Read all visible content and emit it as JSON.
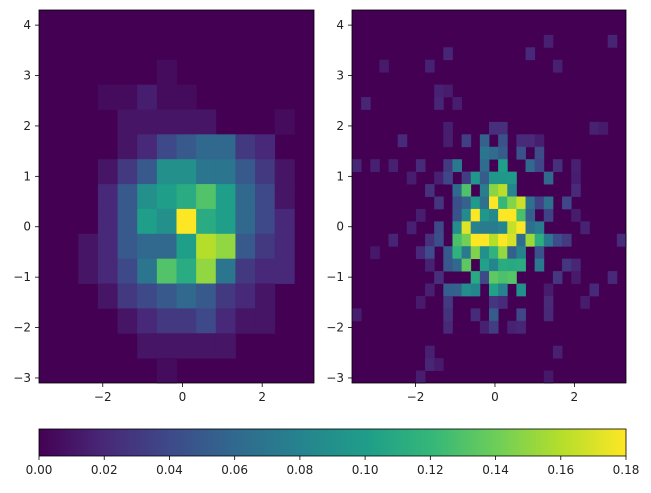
{
  "chart_data": [
    {
      "type": "heatmap",
      "title": "",
      "xlabel": "",
      "ylabel": "",
      "xlim": [
        -3.6,
        3.3
      ],
      "ylim": [
        -3.1,
        4.3
      ],
      "x_ticks": [
        -2,
        0,
        2
      ],
      "y_ticks": [
        -3,
        -2,
        -1,
        0,
        1,
        2,
        3,
        4
      ],
      "grid": false,
      "bins": [
        14,
        15
      ],
      "colormap": "viridis",
      "density_grid_top_to_bottom": [
        [
          0.0,
          0.0,
          0.0,
          0.0,
          0.0,
          0.0,
          0.0,
          0.0,
          0.0,
          0.0,
          0.0,
          0.0,
          0.0,
          0.0
        ],
        [
          0.0,
          0.0,
          0.0,
          0.0,
          0.0,
          0.0,
          0.0,
          0.0,
          0.0,
          0.0,
          0.0,
          0.0,
          0.0,
          0.0
        ],
        [
          0.0,
          0.0,
          0.0,
          0.0,
          0.0,
          0.0,
          0.005,
          0.0,
          0.0,
          0.0,
          0.0,
          0.0,
          0.0,
          0.0
        ],
        [
          0.0,
          0.0,
          0.0,
          0.005,
          0.005,
          0.015,
          0.005,
          0.005,
          0.0,
          0.0,
          0.0,
          0.0,
          0.0,
          0.0
        ],
        [
          0.0,
          0.0,
          0.0,
          0.0,
          0.01,
          0.01,
          0.01,
          0.01,
          0.01,
          0.0,
          0.0,
          0.0,
          0.005,
          0.0
        ],
        [
          0.0,
          0.0,
          0.0,
          0.0,
          0.01,
          0.02,
          0.04,
          0.05,
          0.06,
          0.06,
          0.03,
          0.02,
          0.0,
          0.0
        ],
        [
          0.0,
          0.0,
          0.0,
          0.01,
          0.03,
          0.05,
          0.09,
          0.09,
          0.07,
          0.07,
          0.05,
          0.03,
          0.01,
          0.0
        ],
        [
          0.0,
          0.0,
          0.0,
          0.02,
          0.05,
          0.09,
          0.1,
          0.11,
          0.13,
          0.1,
          0.06,
          0.04,
          0.01,
          0.0
        ],
        [
          0.0,
          0.0,
          0.0,
          0.02,
          0.05,
          0.1,
          0.09,
          0.18,
          0.11,
          0.1,
          0.06,
          0.04,
          0.02,
          0.0
        ],
        [
          0.0,
          0.0,
          0.01,
          0.02,
          0.05,
          0.06,
          0.06,
          0.1,
          0.16,
          0.15,
          0.05,
          0.03,
          0.02,
          0.0
        ],
        [
          0.0,
          0.0,
          0.01,
          0.02,
          0.04,
          0.07,
          0.13,
          0.11,
          0.15,
          0.07,
          0.03,
          0.02,
          0.02,
          0.0
        ],
        [
          0.0,
          0.0,
          0.0,
          0.01,
          0.03,
          0.04,
          0.05,
          0.06,
          0.05,
          0.03,
          0.02,
          0.01,
          0.0,
          0.0
        ],
        [
          0.0,
          0.0,
          0.0,
          0.0,
          0.01,
          0.02,
          0.03,
          0.03,
          0.04,
          0.02,
          0.01,
          0.01,
          0.0,
          0.0
        ],
        [
          0.0,
          0.0,
          0.0,
          0.0,
          0.0,
          0.01,
          0.01,
          0.01,
          0.01,
          0.01,
          0.0,
          0.0,
          0.0,
          0.0
        ],
        [
          0.0,
          0.0,
          0.0,
          0.0,
          0.0,
          0.0,
          0.005,
          0.0,
          0.0,
          0.0,
          0.0,
          0.0,
          0.0,
          0.0
        ]
      ]
    },
    {
      "type": "heatmap",
      "title": "",
      "xlabel": "",
      "ylabel": "",
      "xlim": [
        -3.6,
        3.3
      ],
      "ylim": [
        -3.1,
        4.3
      ],
      "x_ticks": [
        -2,
        0,
        2
      ],
      "y_ticks": [
        -3,
        -2,
        -1,
        0,
        1,
        2,
        3,
        4
      ],
      "grid": false,
      "bins": [
        30,
        30
      ],
      "colormap": "viridis",
      "density_grid_top_to_bottom": [
        [
          0.0,
          0.0,
          0.0,
          0.0,
          0.0,
          0.0,
          0.0,
          0.0,
          0.0,
          0.0,
          0.0,
          0.0,
          0.0,
          0.0,
          0.0,
          0.0,
          0.0,
          0.0,
          0.0,
          0.0,
          0.0,
          0.0,
          0.0,
          0.0,
          0.0,
          0.0,
          0.0,
          0.0,
          0.0,
          0.0
        ],
        [
          0.0,
          0.0,
          0.0,
          0.0,
          0.0,
          0.0,
          0.0,
          0.0,
          0.0,
          0.0,
          0.0,
          0.0,
          0.0,
          0.0,
          0.0,
          0.0,
          0.0,
          0.0,
          0.0,
          0.0,
          0.0,
          0.0,
          0.0,
          0.0,
          0.0,
          0.0,
          0.0,
          0.0,
          0.0,
          0.0
        ],
        [
          0.0,
          0.0,
          0.0,
          0.0,
          0.0,
          0.0,
          0.0,
          0.0,
          0.0,
          0.0,
          0.0,
          0.0,
          0.0,
          0.0,
          0.0,
          0.0,
          0.0,
          0.0,
          0.0,
          0.0,
          0.0,
          0.0,
          0.0,
          0.0,
          0.0,
          0.0,
          0.0,
          0.0,
          0.0,
          0.0
        ],
        [
          0.0,
          0.0,
          0.0,
          0.0,
          0.0,
          0.0,
          0.0,
          0.0,
          0.0,
          0.0,
          0.0,
          0.0,
          0.0,
          0.0,
          0.0,
          0.0,
          0.0,
          0.0,
          0.0,
          0.0,
          0.0,
          0.0,
          0.0,
          0.0,
          0.0,
          0.0,
          0.0,
          0.0,
          0.0,
          0.0
        ],
        [
          0.0,
          0.0,
          0.0,
          0.0,
          0.0,
          0.0,
          0.0,
          0.0,
          0.0,
          0.0,
          0.0,
          0.0,
          0.0,
          0.0,
          0.0,
          0.0,
          0.0,
          0.0,
          0.0,
          0.0,
          0.0,
          0.0,
          0.0,
          0.0,
          0.0,
          0.0,
          0.0,
          0.0,
          0.0,
          0.0
        ],
        [
          0.0,
          0.0,
          0.0,
          0.0,
          0.0,
          0.0,
          0.0,
          0.0,
          0.0,
          0.0,
          0.0,
          0.0,
          0.0,
          0.0,
          0.0,
          0.0,
          0.0,
          0.0,
          0.0,
          0.0,
          0.0,
          0.0,
          0.0,
          0.0,
          0.0,
          0.0,
          0.0,
          0.0,
          0.0,
          0.0
        ],
        [
          0.0,
          0.0,
          0.0,
          0.0,
          0.0,
          0.0,
          0.0,
          0.0,
          0.0,
          0.0,
          0.0,
          0.0,
          0.0,
          0.0,
          0.0,
          0.0,
          0.0,
          0.0,
          0.0,
          0.0,
          0.0,
          0.0,
          0.0,
          0.0,
          0.0,
          0.0,
          0.0,
          0.0,
          0.0,
          0.0
        ],
        [
          0.0,
          0.0,
          0.0,
          0.0,
          0.0,
          0.0,
          0.0,
          0.0,
          0.0,
          0.0,
          0.0,
          0.0,
          0.0,
          0.0,
          0.0,
          0.0,
          0.0,
          0.0,
          0.0,
          0.0,
          0.0,
          0.0,
          0.0,
          0.0,
          0.0,
          0.0,
          0.0,
          0.0,
          0.0,
          0.0
        ],
        [
          0.0,
          0.0,
          0.0,
          0.0,
          0.0,
          0.0,
          0.0,
          0.0,
          0.0,
          0.0,
          0.0,
          0.0,
          0.0,
          0.0,
          0.0,
          0.0,
          0.0,
          0.0,
          0.0,
          0.0,
          0.0,
          0.0,
          0.0,
          0.0,
          0.0,
          0.0,
          0.0,
          0.0,
          0.0,
          0.0
        ],
        [
          0.0,
          0.0,
          0.0,
          0.0,
          0.0,
          0.0,
          0.0,
          0.0,
          0.0,
          0.0,
          0.0,
          0.0,
          0.0,
          0.0,
          0.0,
          0.0,
          0.0,
          0.0,
          0.0,
          0.0,
          0.0,
          0.0,
          0.0,
          0.0,
          0.0,
          0.0,
          0.0,
          0.0,
          0.0,
          0.0
        ],
        [
          0.0,
          0.0,
          0.0,
          0.0,
          0.0,
          0.0,
          0.0,
          0.0,
          0.0,
          0.0,
          0.0,
          0.0,
          0.0,
          0.0,
          0.0,
          0.0,
          0.0,
          0.0,
          0.0,
          0.0,
          0.0,
          0.0,
          0.0,
          0.0,
          0.0,
          0.0,
          0.0,
          0.0,
          0.0,
          0.0
        ],
        [
          0.0,
          0.0,
          0.0,
          0.0,
          0.0,
          0.0,
          0.0,
          0.0,
          0.0,
          0.0,
          0.0,
          0.0,
          0.0,
          0.0,
          0.0,
          0.0,
          0.0,
          0.0,
          0.0,
          0.0,
          0.0,
          0.0,
          0.0,
          0.0,
          0.0,
          0.0,
          0.0,
          0.0,
          0.0,
          0.0
        ],
        [
          0.0,
          0.0,
          0.0,
          0.0,
          0.0,
          0.0,
          0.0,
          0.0,
          0.0,
          0.0,
          0.0,
          0.0,
          0.0,
          0.0,
          0.0,
          0.0,
          0.0,
          0.0,
          0.0,
          0.0,
          0.0,
          0.0,
          0.0,
          0.0,
          0.0,
          0.0,
          0.0,
          0.0,
          0.0,
          0.0
        ],
        [
          0.0,
          0.0,
          0.0,
          0.0,
          0.0,
          0.0,
          0.0,
          0.0,
          0.0,
          0.0,
          0.0,
          0.0,
          0.0,
          0.0,
          0.0,
          0.0,
          0.0,
          0.0,
          0.0,
          0.0,
          0.0,
          0.0,
          0.0,
          0.0,
          0.0,
          0.0,
          0.0,
          0.0,
          0.0,
          0.0
        ],
        [
          0.0,
          0.0,
          0.0,
          0.0,
          0.0,
          0.0,
          0.0,
          0.0,
          0.0,
          0.0,
          0.0,
          0.0,
          0.0,
          0.0,
          0.0,
          0.0,
          0.0,
          0.0,
          0.0,
          0.0,
          0.0,
          0.0,
          0.0,
          0.0,
          0.0,
          0.0,
          0.0,
          0.0,
          0.0,
          0.0
        ],
        [
          0.0,
          0.0,
          0.0,
          0.0,
          0.0,
          0.0,
          0.0,
          0.0,
          0.0,
          0.0,
          0.0,
          0.0,
          0.0,
          0.0,
          0.0,
          0.0,
          0.0,
          0.0,
          0.0,
          0.0,
          0.0,
          0.0,
          0.0,
          0.0,
          0.0,
          0.0,
          0.0,
          0.0,
          0.0,
          0.0
        ],
        [
          0.0,
          0.0,
          0.0,
          0.0,
          0.0,
          0.0,
          0.0,
          0.0,
          0.0,
          0.0,
          0.0,
          0.0,
          0.0,
          0.0,
          0.0,
          0.0,
          0.0,
          0.0,
          0.0,
          0.0,
          0.0,
          0.0,
          0.0,
          0.0,
          0.0,
          0.0,
          0.0,
          0.0,
          0.0,
          0.0
        ],
        [
          0.0,
          0.0,
          0.0,
          0.0,
          0.0,
          0.0,
          0.0,
          0.0,
          0.0,
          0.0,
          0.0,
          0.0,
          0.0,
          0.0,
          0.0,
          0.0,
          0.0,
          0.0,
          0.0,
          0.0,
          0.0,
          0.0,
          0.0,
          0.0,
          0.0,
          0.0,
          0.0,
          0.0,
          0.0,
          0.0
        ],
        [
          0.0,
          0.0,
          0.0,
          0.0,
          0.0,
          0.0,
          0.0,
          0.0,
          0.0,
          0.0,
          0.0,
          0.0,
          0.0,
          0.0,
          0.0,
          0.0,
          0.0,
          0.0,
          0.0,
          0.0,
          0.0,
          0.0,
          0.0,
          0.0,
          0.0,
          0.0,
          0.0,
          0.0,
          0.0,
          0.0
        ],
        [
          0.0,
          0.0,
          0.0,
          0.0,
          0.0,
          0.0,
          0.0,
          0.0,
          0.0,
          0.0,
          0.0,
          0.0,
          0.0,
          0.0,
          0.0,
          0.0,
          0.0,
          0.0,
          0.0,
          0.0,
          0.0,
          0.0,
          0.0,
          0.0,
          0.0,
          0.0,
          0.0,
          0.0,
          0.0,
          0.0
        ],
        [
          0.0,
          0.0,
          0.0,
          0.0,
          0.0,
          0.0,
          0.0,
          0.0,
          0.0,
          0.0,
          0.0,
          0.0,
          0.0,
          0.0,
          0.0,
          0.0,
          0.0,
          0.0,
          0.0,
          0.0,
          0.0,
          0.0,
          0.0,
          0.0,
          0.0,
          0.0,
          0.0,
          0.0,
          0.0,
          0.0
        ],
        [
          0.0,
          0.0,
          0.0,
          0.0,
          0.0,
          0.0,
          0.0,
          0.0,
          0.0,
          0.0,
          0.0,
          0.0,
          0.0,
          0.0,
          0.0,
          0.0,
          0.0,
          0.0,
          0.0,
          0.0,
          0.0,
          0.0,
          0.0,
          0.0,
          0.0,
          0.0,
          0.0,
          0.0,
          0.0,
          0.0
        ],
        [
          0.0,
          0.0,
          0.0,
          0.0,
          0.0,
          0.0,
          0.0,
          0.0,
          0.0,
          0.0,
          0.0,
          0.0,
          0.0,
          0.0,
          0.0,
          0.0,
          0.0,
          0.0,
          0.0,
          0.0,
          0.0,
          0.0,
          0.0,
          0.0,
          0.0,
          0.0,
          0.0,
          0.0,
          0.0,
          0.0
        ],
        [
          0.0,
          0.0,
          0.0,
          0.0,
          0.0,
          0.0,
          0.0,
          0.0,
          0.0,
          0.0,
          0.0,
          0.0,
          0.0,
          0.0,
          0.0,
          0.0,
          0.0,
          0.0,
          0.0,
          0.0,
          0.0,
          0.0,
          0.0,
          0.0,
          0.0,
          0.0,
          0.0,
          0.0,
          0.0,
          0.0
        ],
        [
          0.0,
          0.0,
          0.0,
          0.0,
          0.0,
          0.0,
          0.0,
          0.0,
          0.0,
          0.0,
          0.0,
          0.0,
          0.0,
          0.0,
          0.0,
          0.0,
          0.0,
          0.0,
          0.0,
          0.0,
          0.0,
          0.0,
          0.0,
          0.0,
          0.0,
          0.0,
          0.0,
          0.0,
          0.0,
          0.0
        ],
        [
          0.0,
          0.0,
          0.0,
          0.0,
          0.0,
          0.0,
          0.0,
          0.0,
          0.0,
          0.0,
          0.0,
          0.0,
          0.0,
          0.0,
          0.0,
          0.0,
          0.0,
          0.0,
          0.0,
          0.0,
          0.0,
          0.0,
          0.0,
          0.0,
          0.0,
          0.0,
          0.0,
          0.0,
          0.0,
          0.0
        ],
        [
          0.0,
          0.0,
          0.0,
          0.0,
          0.0,
          0.0,
          0.0,
          0.0,
          0.0,
          0.0,
          0.0,
          0.0,
          0.0,
          0.0,
          0.0,
          0.0,
          0.0,
          0.0,
          0.0,
          0.0,
          0.0,
          0.0,
          0.0,
          0.0,
          0.0,
          0.0,
          0.0,
          0.0,
          0.0,
          0.0
        ],
        [
          0.0,
          0.0,
          0.0,
          0.0,
          0.0,
          0.0,
          0.0,
          0.0,
          0.0,
          0.0,
          0.0,
          0.0,
          0.0,
          0.0,
          0.0,
          0.0,
          0.0,
          0.0,
          0.0,
          0.0,
          0.0,
          0.0,
          0.0,
          0.0,
          0.0,
          0.0,
          0.0,
          0.0,
          0.0,
          0.0
        ],
        [
          0.0,
          0.0,
          0.0,
          0.0,
          0.0,
          0.0,
          0.0,
          0.0,
          0.0,
          0.0,
          0.0,
          0.0,
          0.0,
          0.0,
          0.0,
          0.0,
          0.0,
          0.0,
          0.0,
          0.0,
          0.0,
          0.0,
          0.0,
          0.0,
          0.0,
          0.0,
          0.0,
          0.0,
          0.0,
          0.0
        ],
        [
          0.0,
          0.0,
          0.0,
          0.0,
          0.0,
          0.0,
          0.0,
          0.0,
          0.0,
          0.0,
          0.0,
          0.0,
          0.0,
          0.0,
          0.0,
          0.0,
          0.0,
          0.0,
          0.0,
          0.0,
          0.0,
          0.0,
          0.0,
          0.0,
          0.0,
          0.0,
          0.0,
          0.0,
          0.0,
          0.0
        ]
      ]
    }
  ],
  "colorbar": {
    "orientation": "horizontal",
    "range": [
      0.0,
      0.18
    ],
    "ticks": [
      "0.00",
      "0.02",
      "0.04",
      "0.06",
      "0.08",
      "0.10",
      "0.12",
      "0.14",
      "0.16",
      "0.18"
    ]
  },
  "colormap_stops": [
    "#440154",
    "#482878",
    "#3e4989",
    "#31688e",
    "#26828e",
    "#1f9e89",
    "#35b779",
    "#6ece58",
    "#b5de2b",
    "#fde725"
  ]
}
